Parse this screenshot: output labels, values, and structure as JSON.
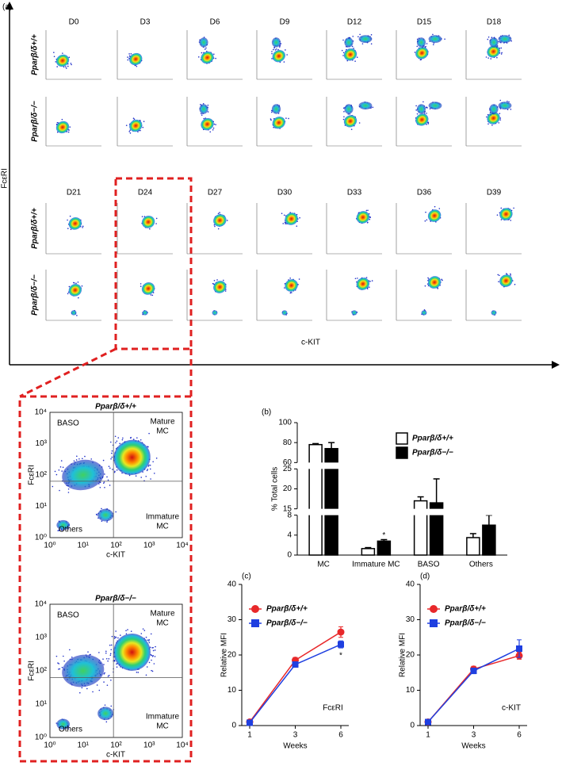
{
  "panel_a": {
    "label": "(a)",
    "y_axis_label": "FcεRI",
    "x_axis_label": "c-KIT",
    "days": [
      "D0",
      "D3",
      "D6",
      "D9",
      "D12",
      "D15",
      "D18",
      "D21",
      "D24",
      "D27",
      "D30",
      "D33",
      "D36",
      "D39"
    ],
    "genotypes": [
      "Pparβ/δ+/+",
      "Pparβ/δ−/−"
    ]
  },
  "zoom": {
    "genotypes": [
      "Pparβ/δ+/+",
      "Pparβ/δ−/−"
    ],
    "quadrants": {
      "baso": "BASO",
      "mature": [
        "Mature",
        "MC"
      ],
      "immature": [
        "Immature",
        "MC"
      ],
      "others": "Others"
    },
    "x_axis_label": "c-KIT",
    "y_axis_label": "FcεRI",
    "ticks": [
      "10⁰",
      "10¹",
      "10²",
      "10³",
      "10⁴"
    ]
  },
  "chart_data": [
    {
      "type": "bar",
      "panel_label": "(b)",
      "y_label": "% Total cells",
      "categories": [
        "MC",
        "Immature MC",
        "BASO",
        "Others"
      ],
      "series": [
        {
          "name": "Pparβ/δ+/+",
          "color": "#ffffff",
          "values": [
            78,
            1.3,
            17,
            3.5
          ],
          "errors": [
            1,
            0.2,
            1,
            0.8
          ]
        },
        {
          "name": "Pparβ/δ−/−",
          "color": "#000000",
          "values": [
            74,
            2.8,
            16.5,
            6
          ],
          "errors": [
            6,
            0.3,
            6,
            2
          ]
        }
      ],
      "ylim": [
        0,
        100
      ],
      "y_segments": [
        [
          0,
          8
        ],
        [
          15,
          25
        ],
        [
          60,
          100
        ]
      ],
      "yticks": [
        0,
        4,
        8,
        15,
        20,
        25,
        60,
        80,
        100
      ],
      "annotations": [
        {
          "text": "*",
          "category": 1,
          "series": 1
        }
      ]
    },
    {
      "type": "line",
      "panel_label": "(c)",
      "x_label": "Weeks",
      "y_label": "Relative MFI",
      "categories": [
        "1",
        "3",
        "6"
      ],
      "series": [
        {
          "name": "Pparβ/δ+/+",
          "color": "#e8282a",
          "values": [
            1,
            18.5,
            26.5
          ],
          "errors": [
            0.5,
            0.8,
            1.5
          ]
        },
        {
          "name": "Pparβ/δ−/−",
          "color": "#1f3fe0",
          "values": [
            0.8,
            17.3,
            23
          ],
          "errors": [
            0.3,
            0.5,
            1
          ]
        }
      ],
      "ylim": [
        0,
        40
      ],
      "yticks": [
        0,
        10,
        20,
        30,
        40
      ],
      "annotations": [
        {
          "text": "FcεRI"
        },
        {
          "text": "*",
          "category": 2,
          "series": 1
        }
      ]
    },
    {
      "type": "line",
      "panel_label": "(d)",
      "x_label": "Weeks",
      "y_label": "Relative MFI",
      "categories": [
        "1",
        "3",
        "6"
      ],
      "series": [
        {
          "name": "Pparβ/δ+/+",
          "color": "#e8282a",
          "values": [
            1,
            16,
            19.8
          ],
          "errors": [
            0.5,
            0.8,
            1
          ]
        },
        {
          "name": "Pparβ/δ−/−",
          "color": "#1f3fe0",
          "values": [
            1,
            15.5,
            21.8
          ],
          "errors": [
            0.3,
            0.8,
            2.5
          ]
        }
      ],
      "ylim": [
        0,
        40
      ],
      "yticks": [
        0,
        10,
        20,
        30,
        40
      ],
      "annotations": [
        {
          "text": "c-KIT"
        }
      ]
    }
  ]
}
